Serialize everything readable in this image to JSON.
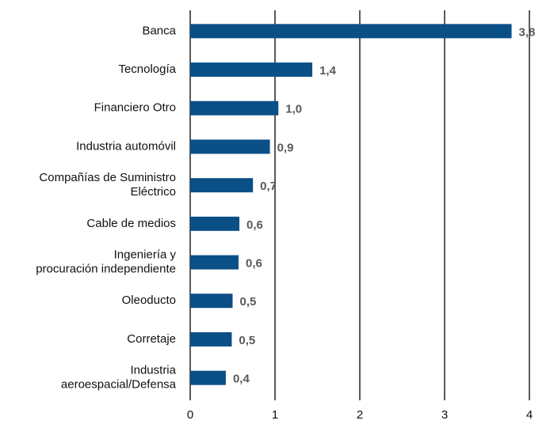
{
  "chart_data": {
    "type": "hbar",
    "categories": [
      "Banca",
      "Tecnología",
      "Financiero Otro",
      "Industria automóvil",
      "Compañías de Suministro\nEléctrico",
      "Cable de medios",
      "Ingeniería y\nprocuración independiente",
      "Oleoducto",
      "Corretaje",
      "Industria\naeroespacial/Defensa"
    ],
    "values": [
      3.79,
      1.44,
      1.04,
      0.94,
      0.74,
      0.58,
      0.57,
      0.5,
      0.49,
      0.42
    ],
    "value_labels": [
      "3,8",
      "1,4",
      "1,0",
      "0,9",
      "0,7",
      "0,6",
      "0,6",
      "0,5",
      "0,5",
      "0,4"
    ],
    "color": "#0b4f87",
    "xlim": [
      0,
      4
    ],
    "xticks": [
      0,
      1,
      2,
      3,
      4
    ],
    "grid": true
  }
}
